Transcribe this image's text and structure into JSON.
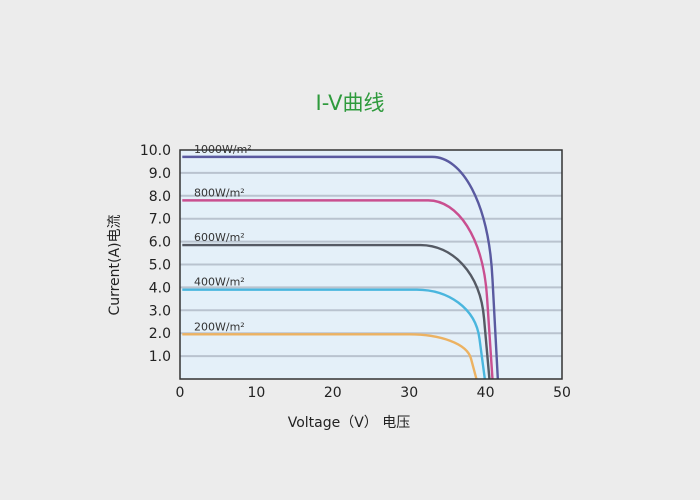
{
  "chart_data": {
    "type": "line",
    "title": "I-V曲线",
    "xlabel": "Voltage（V） 电压",
    "ylabel": "Current(A)电流",
    "xlim": [
      0,
      50
    ],
    "ylim": [
      0,
      10
    ],
    "x_ticks": [
      "0",
      "10",
      "20",
      "30",
      "40",
      "50"
    ],
    "y_ticks": [
      "1.0",
      "2.0",
      "3.0",
      "4.0",
      "5.0",
      "6.0",
      "7.0",
      "8.0",
      "9.0",
      "10.0"
    ],
    "grid": true,
    "colors": {
      "title": "#2e9a3c",
      "plot_background": "#e4f0f9",
      "grid": "#b9c3cf",
      "frame": "#333333"
    },
    "series": [
      {
        "name": "1000W/m²",
        "color": "#5a5aa0",
        "isc": 9.7,
        "knee_v": 33.0,
        "voc": 41.6
      },
      {
        "name": "800W/m²",
        "color": "#c94f90",
        "isc": 7.8,
        "knee_v": 32.5,
        "voc": 40.9
      },
      {
        "name": "600W/m²",
        "color": "#555a64",
        "isc": 5.85,
        "knee_v": 31.5,
        "voc": 40.5
      },
      {
        "name": "400W/m²",
        "color": "#4ab6de",
        "isc": 3.9,
        "knee_v": 31.0,
        "voc": 39.9
      },
      {
        "name": "200W/m²",
        "color": "#ecb262",
        "isc": 1.95,
        "knee_v": 30.0,
        "voc": 38.8
      }
    ]
  }
}
